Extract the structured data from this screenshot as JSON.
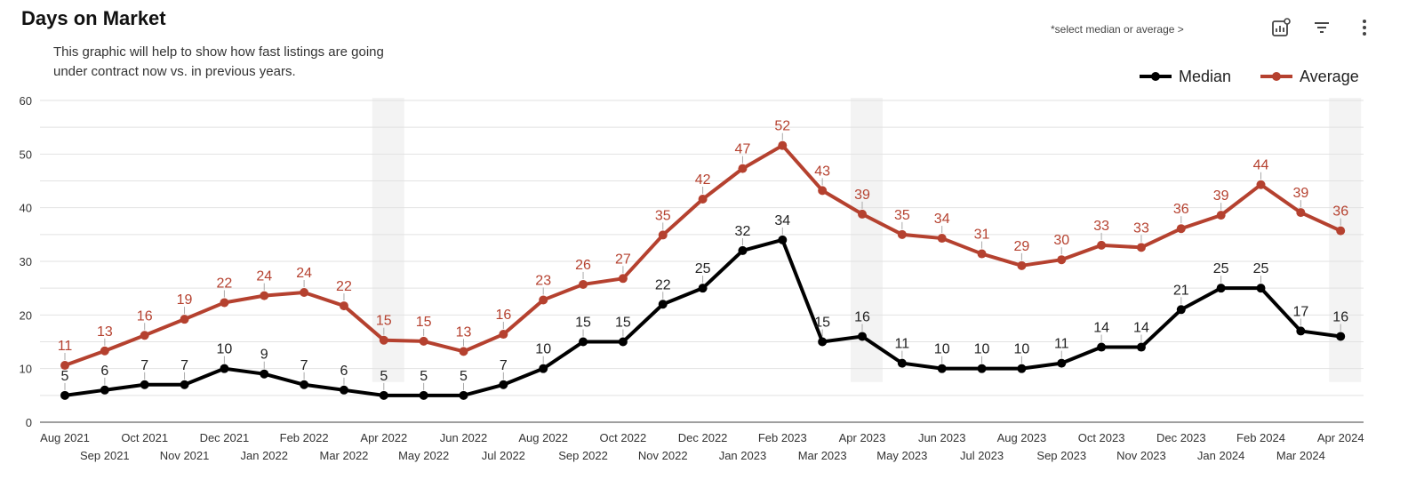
{
  "header": {
    "title": "Days on Market",
    "subtitle_line1": "This graphic will help to show how fast listings are going",
    "subtitle_line2": "under contract now vs. in previous years.",
    "hint": "*select median or average >"
  },
  "toolbar": {
    "icons": [
      "insights-icon",
      "filter-icon",
      "more-vert-icon"
    ]
  },
  "colors": {
    "median": "#000000",
    "average": "#b5412f",
    "grid": "#e2e2e2",
    "highlight": "#f3f3f3"
  },
  "chart_data": {
    "type": "line",
    "title": "Days on Market",
    "xlabel": "",
    "ylabel": "",
    "ylim": [
      0,
      60
    ],
    "yticks": [
      0,
      10,
      20,
      30,
      40,
      50,
      60
    ],
    "grid": true,
    "legend_position": "top-right",
    "categories": [
      "Aug 2021",
      "Sep 2021",
      "Oct 2021",
      "Nov 2021",
      "Dec 2021",
      "Jan 2022",
      "Feb 2022",
      "Mar 2022",
      "Apr 2022",
      "May 2022",
      "Jun 2022",
      "Jul 2022",
      "Aug 2022",
      "Sep 2022",
      "Oct 2022",
      "Nov 2022",
      "Dec 2022",
      "Jan 2023",
      "Feb 2023",
      "Mar 2023",
      "Apr 2023",
      "May 2023",
      "Jun 2023",
      "Jul 2023",
      "Aug 2023",
      "Sep 2023",
      "Oct 2023",
      "Nov 2023",
      "Dec 2023",
      "Jan 2024",
      "Feb 2024",
      "Mar 2024",
      "Apr 2024"
    ],
    "highlighted_categories": [
      "Apr 2022",
      "Apr 2023",
      "Apr 2024"
    ],
    "series": [
      {
        "name": "Median",
        "values": [
          5,
          6,
          7,
          7,
          10,
          9,
          7,
          6,
          5,
          5,
          5,
          7,
          10,
          15,
          15,
          22,
          25,
          32,
          34,
          15,
          16,
          11,
          10,
          10,
          10,
          11,
          14,
          14,
          21,
          25,
          25,
          17,
          16
        ]
      },
      {
        "name": "Average",
        "values": [
          11,
          13,
          16,
          19,
          22,
          24,
          24,
          22,
          15,
          15,
          13,
          16,
          23,
          26,
          27,
          35,
          42,
          47,
          52,
          43,
          39,
          35,
          34,
          31,
          29,
          30,
          33,
          33,
          36,
          39,
          44,
          39,
          36
        ],
        "plotted": [
          10.6,
          13.3,
          16.2,
          19.2,
          22.3,
          23.6,
          24.2,
          21.7,
          15.3,
          15.1,
          13.2,
          16.4,
          22.8,
          25.7,
          26.8,
          34.9,
          41.6,
          47.3,
          51.6,
          43.2,
          38.8,
          35.0,
          34.3,
          31.4,
          29.2,
          30.3,
          33.0,
          32.6,
          36.1,
          38.6,
          44.3,
          39.1,
          35.7
        ]
      }
    ]
  }
}
